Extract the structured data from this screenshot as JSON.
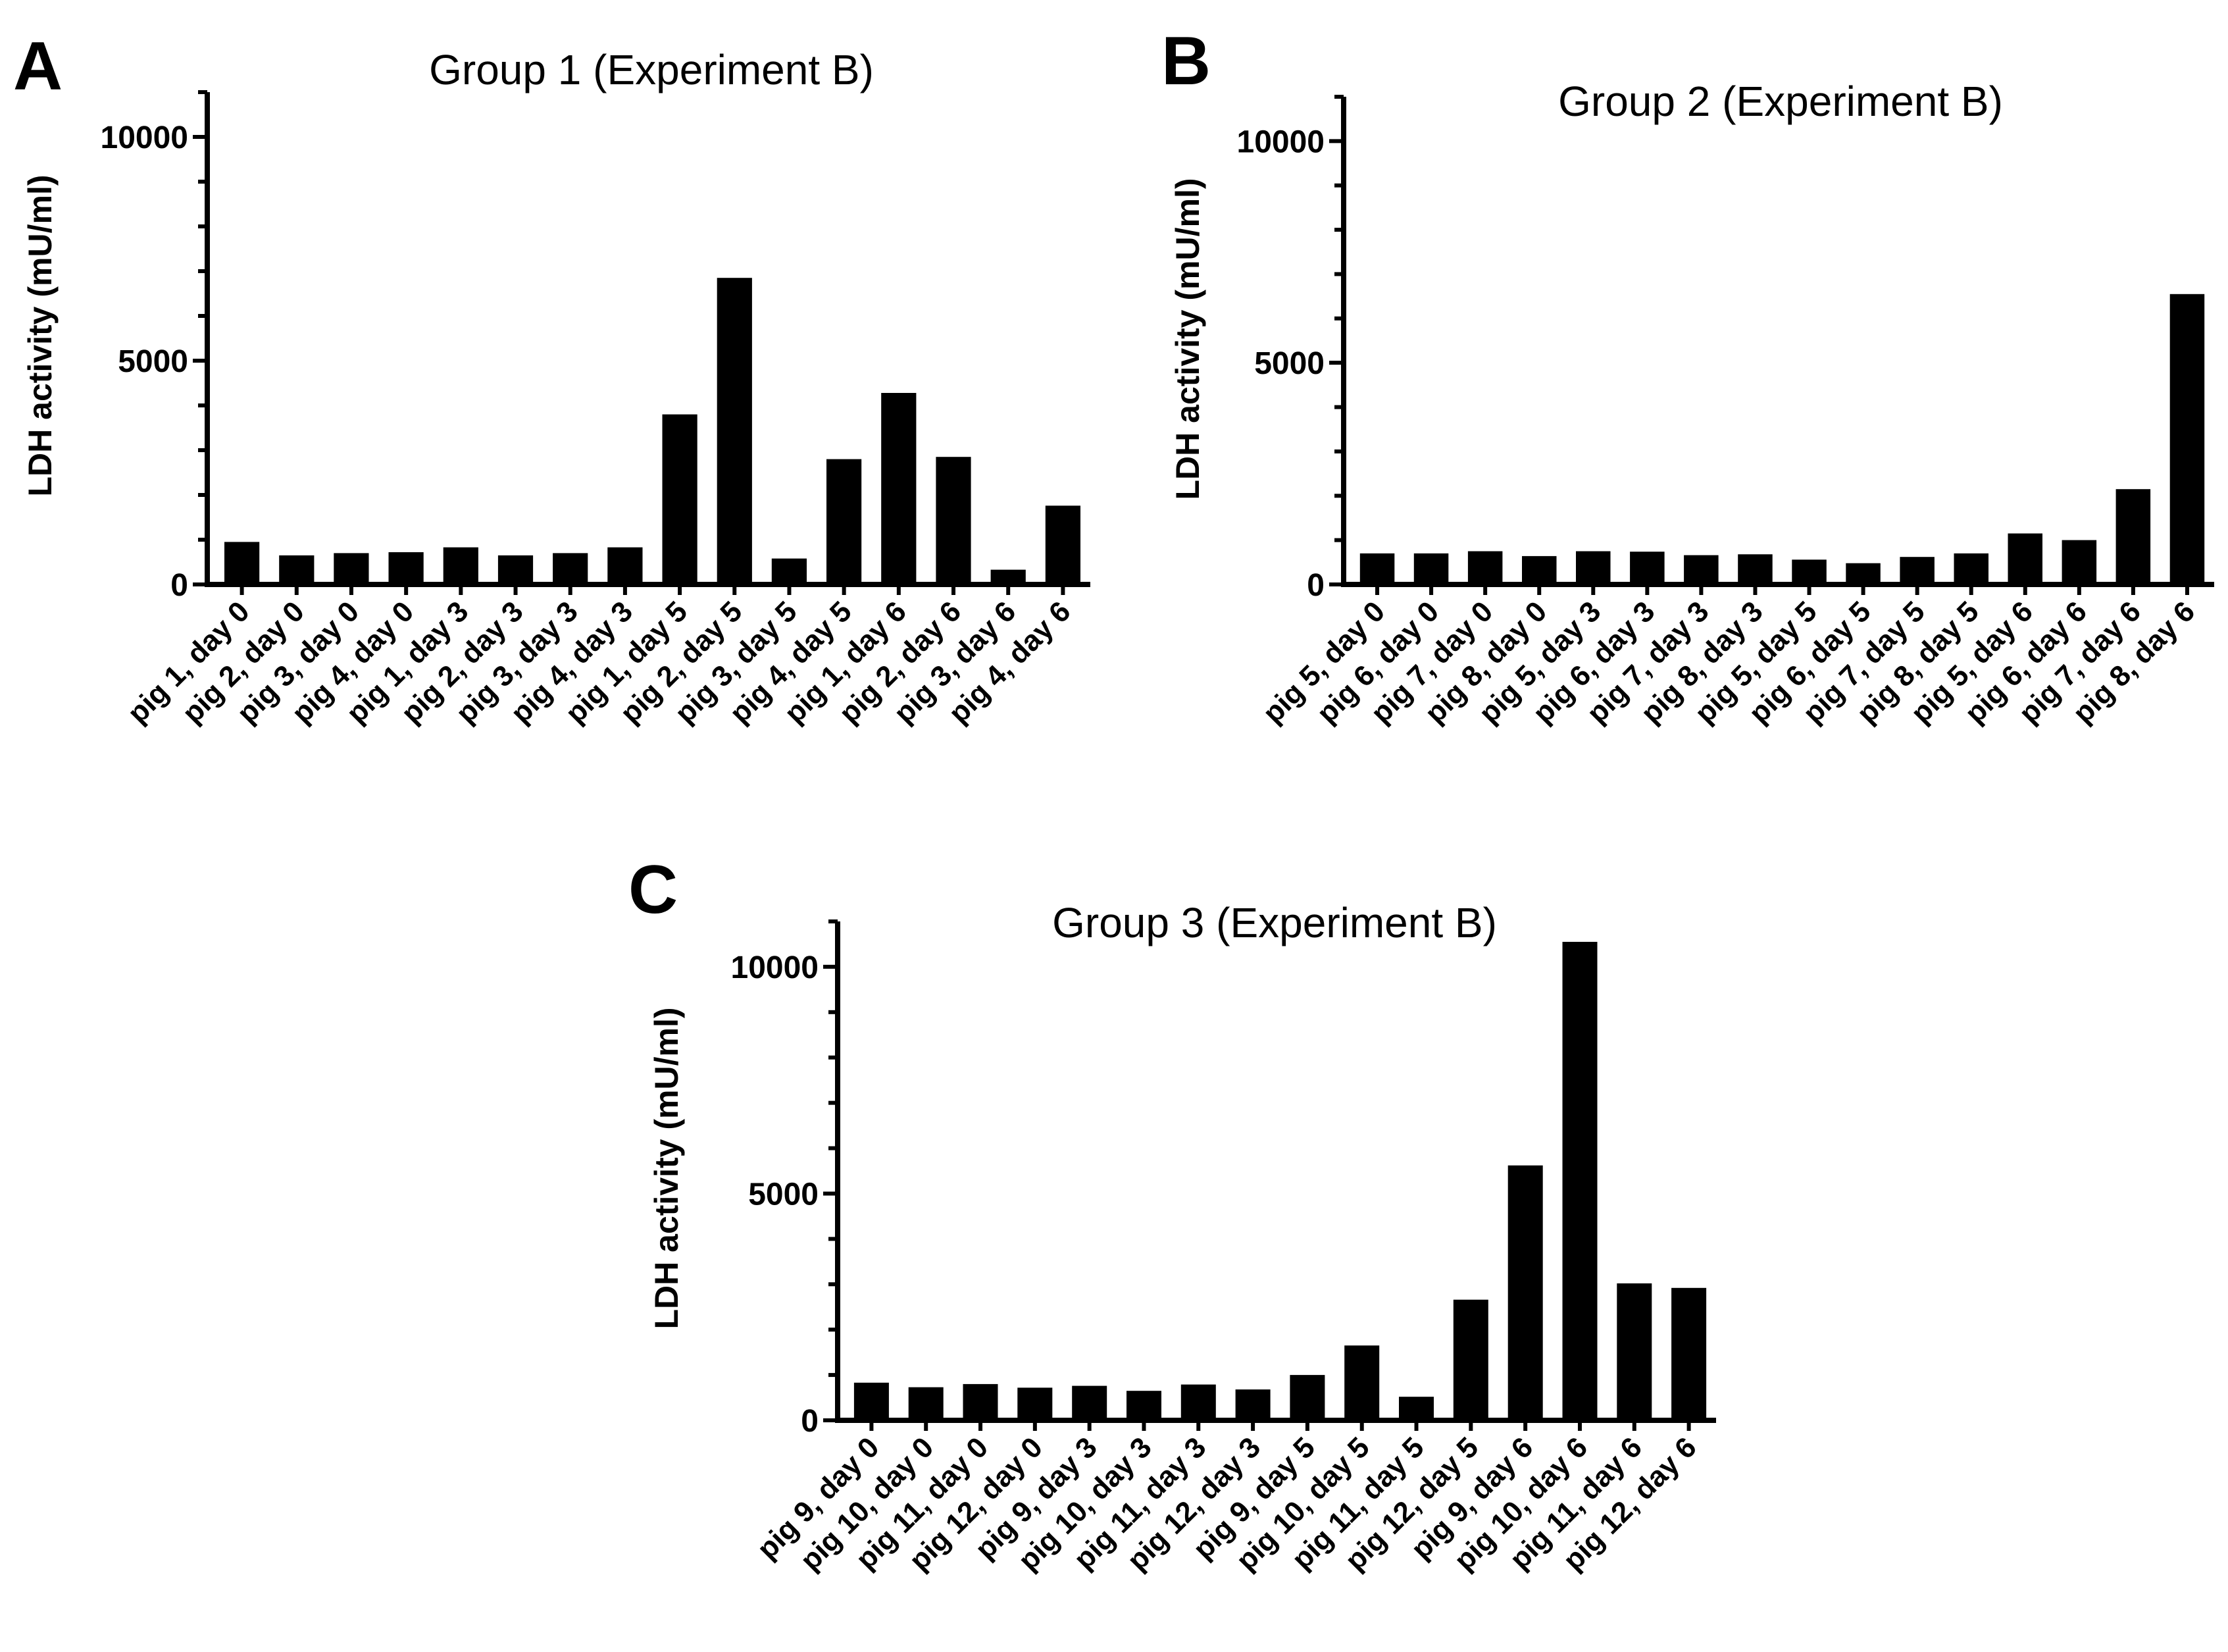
{
  "chart_data": [
    {
      "panel": "A",
      "type": "bar",
      "title": "Group 1 (Experiment B)",
      "xlabel": "",
      "ylabel": "LDH activity (mU/ml)",
      "ylim": [
        0,
        11000
      ],
      "yticks": [
        0,
        5000,
        10000
      ],
      "categories": [
        "pig 1, day 0",
        "pig 2, day 0",
        "pig 3, day 0",
        "pig 4, day 0",
        "pig 1, day 3",
        "pig 2, day 3",
        "pig 3, day 3",
        "pig 4, day 3",
        "pig 1, day 5",
        "pig 2, day 5",
        "pig 3, day 5",
        "pig 4, day 5",
        "pig 1, day 6",
        "pig 2, day 6",
        "pig 3, day 6",
        "pig 4, day 6"
      ],
      "values": [
        950,
        650,
        700,
        720,
        830,
        650,
        700,
        830,
        3800,
        6850,
        580,
        2800,
        4280,
        2850,
        330,
        1760
      ]
    },
    {
      "panel": "B",
      "type": "bar",
      "title": "Group 2 (Experiment B)",
      "xlabel": "",
      "ylabel": "LDH activity (mU/ml)",
      "ylim": [
        0,
        11000
      ],
      "yticks": [
        0,
        5000,
        10000
      ],
      "categories": [
        "pig 5, day 0",
        "pig 6, day 0",
        "pig 7, day 0",
        "pig 8, day 0",
        "pig 5, day 3",
        "pig 6, day 3",
        "pig 7, day 3",
        "pig 8, day 3",
        "pig 5, day 5",
        "pig 6, day 5",
        "pig 7, day 5",
        "pig 8, day 5",
        "pig 5, day 6",
        "pig 6, day 6",
        "pig 7, day 6",
        "pig 8, day 6"
      ],
      "values": [
        700,
        700,
        750,
        640,
        750,
        740,
        660,
        680,
        560,
        480,
        620,
        700,
        1150,
        1000,
        2150,
        6550
      ]
    },
    {
      "panel": "C",
      "type": "bar",
      "title": "Group 3 (Experiment B)",
      "xlabel": "",
      "ylabel": "LDH activity (mU/ml)",
      "ylim": [
        0,
        11000
      ],
      "yticks": [
        0,
        5000,
        10000
      ],
      "categories": [
        "pig 9, day 0",
        "pig 10, day 0",
        "pig 11, day 0",
        "pig 12, day 0",
        "pig 9, day 3",
        "pig 10, day 3",
        "pig 11, day 3",
        "pig 12, day 3",
        "pig 9, day 5",
        "pig 10, day 5",
        "pig 11, day 5",
        "pig 12, day 5",
        "pig 9, day 6",
        "pig 10, day 6",
        "pig 11, day 6",
        "pig 12, day 6"
      ],
      "values": [
        830,
        730,
        800,
        720,
        760,
        650,
        790,
        680,
        1000,
        1650,
        520,
        2660,
        5620,
        10550,
        3020,
        2920
      ]
    }
  ]
}
